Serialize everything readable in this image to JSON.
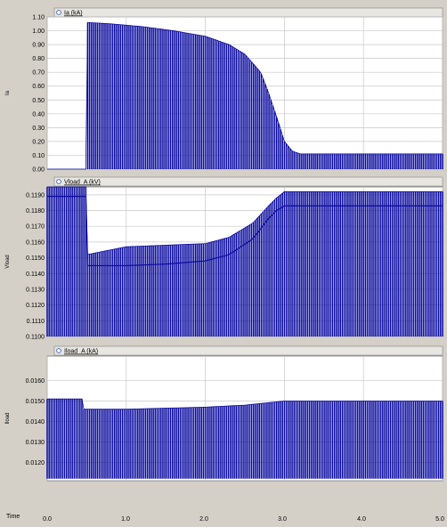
{
  "colors": {
    "background": "#d4d0c8",
    "plot_background": "#ffffff",
    "trace": "#0a0aa0",
    "grid": "#c8c8c8",
    "legend_box": "#e8e6e0",
    "legend_icon": "#4a70c8"
  },
  "x_axis": {
    "label": "Time",
    "ticks": [
      "0.0",
      "1.0",
      "2.0",
      "3.0",
      "4.0",
      "5.0"
    ]
  },
  "chart_data": [
    {
      "type": "line",
      "legend": "Ia (kA)",
      "ylabel_vertical": "Ia",
      "xlim": [
        0,
        5
      ],
      "ylim": [
        0,
        1.1
      ],
      "yticks": [
        "0.00",
        "0.10",
        "0.20",
        "0.30",
        "0.40",
        "0.50",
        "0.60",
        "0.70",
        "0.80",
        "0.90",
        "1.00",
        "1.10"
      ],
      "ytick_values": [
        0,
        0.1,
        0.2,
        0.3,
        0.4,
        0.5,
        0.6,
        0.7,
        0.8,
        0.9,
        1.0,
        1.1
      ],
      "series": [
        {
          "envelope_x": [
            0,
            0.5,
            0.5,
            0.8,
            1.2,
            1.6,
            2.0,
            2.3,
            2.5,
            2.7,
            2.8,
            2.9,
            3.0,
            3.1,
            3.2,
            4.0,
            5.0
          ],
          "upper": [
            0.0,
            0.0,
            1.06,
            1.05,
            1.03,
            1.0,
            0.96,
            0.9,
            0.83,
            0.7,
            0.55,
            0.38,
            0.2,
            0.13,
            0.11,
            0.11,
            0.11
          ],
          "lower": [
            0.0,
            0.0,
            0,
            0,
            0,
            0,
            0,
            0,
            0,
            0,
            0,
            0,
            0,
            0,
            0,
            0,
            0
          ]
        }
      ]
    },
    {
      "type": "line",
      "legend": "Vload_A (kV)",
      "ylabel_vertical": "Vload",
      "xlim": [
        0,
        5
      ],
      "ylim": [
        0.11,
        0.1195
      ],
      "yticks": [
        "0.1100",
        "0.1110",
        "0.1120",
        "0.1130",
        "0.1140",
        "0.1150",
        "0.1160",
        "0.1170",
        "0.1180",
        "0.1190"
      ],
      "ytick_values": [
        0.11,
        0.111,
        0.112,
        0.113,
        0.114,
        0.115,
        0.116,
        0.117,
        0.118,
        0.119
      ],
      "series": [
        {
          "envelope_x": [
            0,
            0.45,
            0.45,
            0.5,
            0.5,
            1.0,
            1.5,
            2.0,
            2.3,
            2.6,
            2.8,
            2.9,
            3.0,
            4.0,
            5.0
          ],
          "upper": [
            0.11975,
            0.11975,
            0.11975,
            0.11975,
            0.1152,
            0.1157,
            0.1158,
            0.1159,
            0.1163,
            0.1172,
            0.1183,
            0.1188,
            0.1192,
            0.1192,
            0.1192
          ],
          "mid": [
            0.1189,
            0.1189,
            0.1189,
            0.1189,
            0.1145,
            0.1145,
            0.1146,
            0.1148,
            0.1152,
            0.1162,
            0.1175,
            0.118,
            0.1183,
            0.1183,
            0.1183
          ],
          "lower": [
            0.11,
            0.11,
            0.11,
            0.11,
            0.11,
            0.11,
            0.11,
            0.11,
            0.11,
            0.11,
            0.11,
            0.11,
            0.11,
            0.11,
            0.11
          ]
        }
      ]
    },
    {
      "type": "line",
      "legend": "Iload_A (kA)",
      "ylabel_vertical": "Iload",
      "xlim": [
        0,
        5
      ],
      "ylim": [
        0.0111,
        0.0172
      ],
      "yticks": [
        "0.0120",
        "0.0130",
        "0.0140",
        "0.0150",
        "0.0160"
      ],
      "ytick_values": [
        0.012,
        0.013,
        0.014,
        0.015,
        0.016
      ],
      "series": [
        {
          "envelope_x": [
            0,
            0.45,
            0.45,
            1.0,
            2.0,
            2.5,
            3.0,
            4.0,
            5.0
          ],
          "upper": [
            0.0151,
            0.0151,
            0.0146,
            0.0146,
            0.0147,
            0.0148,
            0.015,
            0.015,
            0.015
          ],
          "lower": [
            0.0112,
            0.0112,
            0.0112,
            0.0112,
            0.0112,
            0.0112,
            0.0112,
            0.0112,
            0.0112
          ]
        }
      ]
    }
  ]
}
